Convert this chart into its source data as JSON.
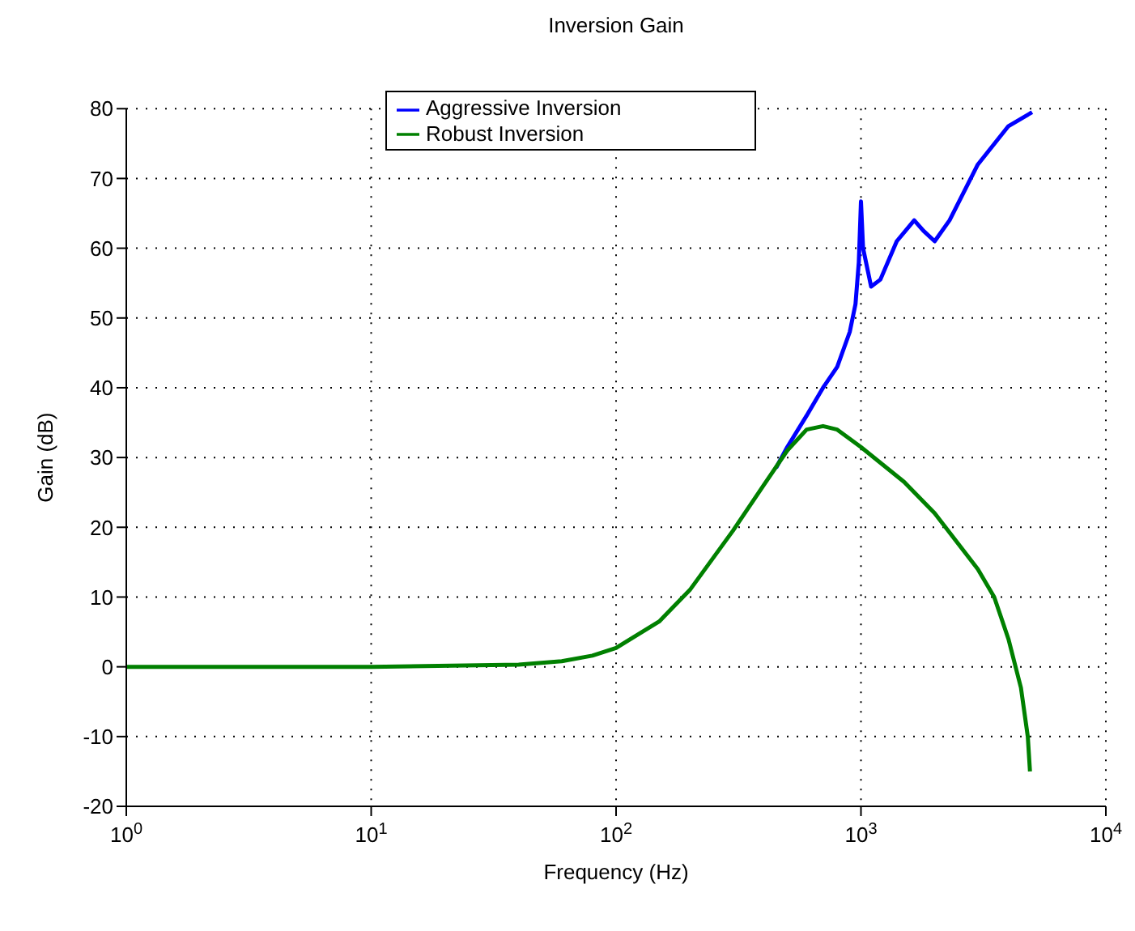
{
  "chart_data": {
    "type": "line",
    "title": "Inversion Gain",
    "xlabel": "Frequency (Hz)",
    "ylabel": "Gain (dB)",
    "log": "x",
    "xlim": [
      1,
      10000
    ],
    "xticks": [
      {
        "value": 1,
        "label": "10$^{0}$"
      },
      {
        "value": 10,
        "label": "10$^{1}$"
      },
      {
        "value": 100,
        "label": "10$^{2}$"
      },
      {
        "value": 1000,
        "label": "10$^{3}$"
      },
      {
        "value": 10000,
        "label": "10$^{4}$"
      }
    ],
    "ylim": [
      -20,
      80
    ],
    "yticks": [
      -20,
      -10,
      0,
      10,
      20,
      30,
      40,
      50,
      60,
      70,
      80
    ],
    "grid": true,
    "legend": "top",
    "line_style": "solid",
    "marker": "none",
    "series": [
      {
        "name": "Aggressive Inversion",
        "color": "#0000ff",
        "x": [
          450,
          500,
          600,
          700,
          800,
          900,
          950,
          980,
          1000,
          1020,
          1100,
          1200,
          1400,
          1650,
          1800,
          2000,
          2300,
          3000,
          4000,
          5000
        ],
        "values": [
          28.5,
          31.5,
          36,
          40,
          43,
          48,
          52,
          58,
          66.7,
          60,
          54.5,
          55.5,
          61,
          64,
          62.5,
          61,
          64,
          72,
          77.5,
          79.5
        ]
      },
      {
        "name": "Robust Inversion",
        "color": "#008000",
        "x": [
          1,
          10,
          40,
          60,
          80,
          100,
          150,
          200,
          300,
          400,
          500,
          600,
          700,
          800,
          1000,
          1500,
          2000,
          3000,
          3500,
          4000,
          4500,
          4800,
          4900
        ],
        "values": [
          0,
          0,
          0.3,
          0.8,
          1.6,
          2.7,
          6.5,
          11,
          19.5,
          26,
          31,
          34,
          34.5,
          34,
          31.5,
          26.5,
          22,
          14,
          10,
          4,
          -3,
          -10,
          -15
        ]
      }
    ]
  }
}
